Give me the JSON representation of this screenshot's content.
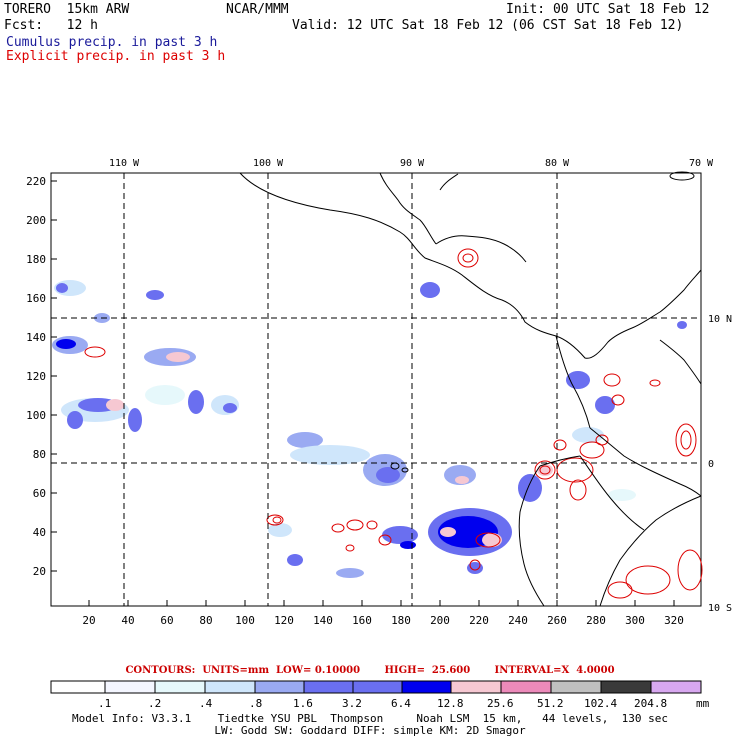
{
  "header": {
    "title": "TORERO  15km ARW",
    "center": "NCAR/MMM",
    "init": "Init: 00 UTC Sat 18 Feb 12",
    "fcst": "Fcst:   12 h",
    "valid": "Valid: 12 UTC Sat 18 Feb 12 (06 CST Sat 18 Feb 12)"
  },
  "legend": {
    "cumulus": "Cumulus precip. in past 3 h",
    "explicit": "Explicit precip. in past 3 h",
    "cumulus_color": "#1a1a9a",
    "explicit_color": "#dd0000"
  },
  "axes": {
    "lon_labels": [
      "110 W",
      "100 W",
      "90 W",
      "80 W",
      "70 W"
    ],
    "lat_labels": [
      "10 N",
      "0",
      "10 S"
    ],
    "y_ticks": [
      "220",
      "200",
      "180",
      "160",
      "140",
      "120",
      "100",
      "80",
      "60",
      "40",
      "20"
    ],
    "x_ticks": [
      "20",
      "40",
      "60",
      "80",
      "100",
      "120",
      "140",
      "160",
      "180",
      "200",
      "220",
      "240",
      "260",
      "280",
      "300",
      "320"
    ]
  },
  "contour_info": {
    "text": "CONTOURS:  UNITS=mm  LOW= 0.10000       HIGH=  25.600       INTERVAL=X  4.0000"
  },
  "colorbar": {
    "labels": [
      ".1",
      ".2",
      ".4",
      ".8",
      "1.6",
      "3.2",
      "6.4",
      "12.8",
      "25.6",
      "51.2",
      "102.4",
      "204.8"
    ],
    "unit": "mm",
    "colors": [
      "#ffffff",
      "#f4f6ff",
      "#e6f8fb",
      "#cfe6fb",
      "#9aaaf2",
      "#6a6ff0",
      "#0000ee",
      "#f6c8d2",
      "#ec8aba",
      "#c0c0c0",
      "#3a3a3a",
      "#d8a8f0"
    ]
  },
  "model_info": {
    "line1": "Model Info: V3.3.1    Tiedtke YSU PBL  Thompson     Noah LSM  15 km,   44 levels,  130 sec",
    "line2": "LW: Godd SW: Goddard DIFF: simple KM: 2D Smagor"
  }
}
